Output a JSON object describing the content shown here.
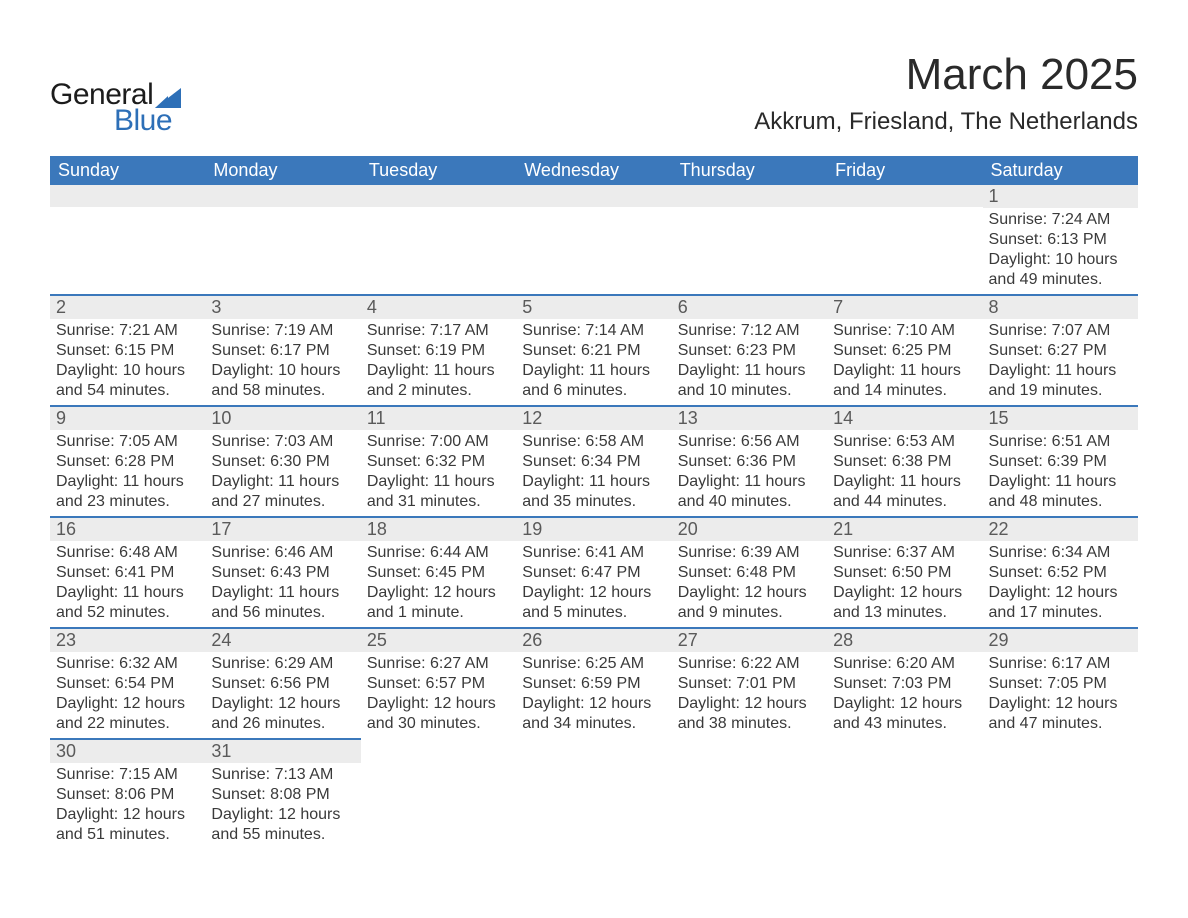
{
  "brand": {
    "general": "General",
    "blue": "Blue",
    "general_color": "#1c1c1c",
    "blue_color": "#2d6fb7",
    "shape_color": "#2d6fb7"
  },
  "header": {
    "title": "March 2025",
    "location": "Akkrum, Friesland, The Netherlands",
    "title_fontsize": 44,
    "location_fontsize": 24
  },
  "colors": {
    "header_band": "#3b78bb",
    "daynum_bg": "#ececec",
    "row_border": "#3b78bb",
    "text": "#3a3a3a",
    "background": "#ffffff"
  },
  "weekdays": [
    "Sunday",
    "Monday",
    "Tuesday",
    "Wednesday",
    "Thursday",
    "Friday",
    "Saturday"
  ],
  "weeks": [
    [
      null,
      null,
      null,
      null,
      null,
      null,
      {
        "day": "1",
        "sunrise": "Sunrise: 7:24 AM",
        "sunset": "Sunset: 6:13 PM",
        "daylight": "Daylight: 10 hours and 49 minutes."
      }
    ],
    [
      {
        "day": "2",
        "sunrise": "Sunrise: 7:21 AM",
        "sunset": "Sunset: 6:15 PM",
        "daylight": "Daylight: 10 hours and 54 minutes."
      },
      {
        "day": "3",
        "sunrise": "Sunrise: 7:19 AM",
        "sunset": "Sunset: 6:17 PM",
        "daylight": "Daylight: 10 hours and 58 minutes."
      },
      {
        "day": "4",
        "sunrise": "Sunrise: 7:17 AM",
        "sunset": "Sunset: 6:19 PM",
        "daylight": "Daylight: 11 hours and 2 minutes."
      },
      {
        "day": "5",
        "sunrise": "Sunrise: 7:14 AM",
        "sunset": "Sunset: 6:21 PM",
        "daylight": "Daylight: 11 hours and 6 minutes."
      },
      {
        "day": "6",
        "sunrise": "Sunrise: 7:12 AM",
        "sunset": "Sunset: 6:23 PM",
        "daylight": "Daylight: 11 hours and 10 minutes."
      },
      {
        "day": "7",
        "sunrise": "Sunrise: 7:10 AM",
        "sunset": "Sunset: 6:25 PM",
        "daylight": "Daylight: 11 hours and 14 minutes."
      },
      {
        "day": "8",
        "sunrise": "Sunrise: 7:07 AM",
        "sunset": "Sunset: 6:27 PM",
        "daylight": "Daylight: 11 hours and 19 minutes."
      }
    ],
    [
      {
        "day": "9",
        "sunrise": "Sunrise: 7:05 AM",
        "sunset": "Sunset: 6:28 PM",
        "daylight": "Daylight: 11 hours and 23 minutes."
      },
      {
        "day": "10",
        "sunrise": "Sunrise: 7:03 AM",
        "sunset": "Sunset: 6:30 PM",
        "daylight": "Daylight: 11 hours and 27 minutes."
      },
      {
        "day": "11",
        "sunrise": "Sunrise: 7:00 AM",
        "sunset": "Sunset: 6:32 PM",
        "daylight": "Daylight: 11 hours and 31 minutes."
      },
      {
        "day": "12",
        "sunrise": "Sunrise: 6:58 AM",
        "sunset": "Sunset: 6:34 PM",
        "daylight": "Daylight: 11 hours and 35 minutes."
      },
      {
        "day": "13",
        "sunrise": "Sunrise: 6:56 AM",
        "sunset": "Sunset: 6:36 PM",
        "daylight": "Daylight: 11 hours and 40 minutes."
      },
      {
        "day": "14",
        "sunrise": "Sunrise: 6:53 AM",
        "sunset": "Sunset: 6:38 PM",
        "daylight": "Daylight: 11 hours and 44 minutes."
      },
      {
        "day": "15",
        "sunrise": "Sunrise: 6:51 AM",
        "sunset": "Sunset: 6:39 PM",
        "daylight": "Daylight: 11 hours and 48 minutes."
      }
    ],
    [
      {
        "day": "16",
        "sunrise": "Sunrise: 6:48 AM",
        "sunset": "Sunset: 6:41 PM",
        "daylight": "Daylight: 11 hours and 52 minutes."
      },
      {
        "day": "17",
        "sunrise": "Sunrise: 6:46 AM",
        "sunset": "Sunset: 6:43 PM",
        "daylight": "Daylight: 11 hours and 56 minutes."
      },
      {
        "day": "18",
        "sunrise": "Sunrise: 6:44 AM",
        "sunset": "Sunset: 6:45 PM",
        "daylight": "Daylight: 12 hours and 1 minute."
      },
      {
        "day": "19",
        "sunrise": "Sunrise: 6:41 AM",
        "sunset": "Sunset: 6:47 PM",
        "daylight": "Daylight: 12 hours and 5 minutes."
      },
      {
        "day": "20",
        "sunrise": "Sunrise: 6:39 AM",
        "sunset": "Sunset: 6:48 PM",
        "daylight": "Daylight: 12 hours and 9 minutes."
      },
      {
        "day": "21",
        "sunrise": "Sunrise: 6:37 AM",
        "sunset": "Sunset: 6:50 PM",
        "daylight": "Daylight: 12 hours and 13 minutes."
      },
      {
        "day": "22",
        "sunrise": "Sunrise: 6:34 AM",
        "sunset": "Sunset: 6:52 PM",
        "daylight": "Daylight: 12 hours and 17 minutes."
      }
    ],
    [
      {
        "day": "23",
        "sunrise": "Sunrise: 6:32 AM",
        "sunset": "Sunset: 6:54 PM",
        "daylight": "Daylight: 12 hours and 22 minutes."
      },
      {
        "day": "24",
        "sunrise": "Sunrise: 6:29 AM",
        "sunset": "Sunset: 6:56 PM",
        "daylight": "Daylight: 12 hours and 26 minutes."
      },
      {
        "day": "25",
        "sunrise": "Sunrise: 6:27 AM",
        "sunset": "Sunset: 6:57 PM",
        "daylight": "Daylight: 12 hours and 30 minutes."
      },
      {
        "day": "26",
        "sunrise": "Sunrise: 6:25 AM",
        "sunset": "Sunset: 6:59 PM",
        "daylight": "Daylight: 12 hours and 34 minutes."
      },
      {
        "day": "27",
        "sunrise": "Sunrise: 6:22 AM",
        "sunset": "Sunset: 7:01 PM",
        "daylight": "Daylight: 12 hours and 38 minutes."
      },
      {
        "day": "28",
        "sunrise": "Sunrise: 6:20 AM",
        "sunset": "Sunset: 7:03 PM",
        "daylight": "Daylight: 12 hours and 43 minutes."
      },
      {
        "day": "29",
        "sunrise": "Sunrise: 6:17 AM",
        "sunset": "Sunset: 7:05 PM",
        "daylight": "Daylight: 12 hours and 47 minutes."
      }
    ],
    [
      {
        "day": "30",
        "sunrise": "Sunrise: 7:15 AM",
        "sunset": "Sunset: 8:06 PM",
        "daylight": "Daylight: 12 hours and 51 minutes."
      },
      {
        "day": "31",
        "sunrise": "Sunrise: 7:13 AM",
        "sunset": "Sunset: 8:08 PM",
        "daylight": "Daylight: 12 hours and 55 minutes."
      },
      null,
      null,
      null,
      null,
      null
    ]
  ]
}
